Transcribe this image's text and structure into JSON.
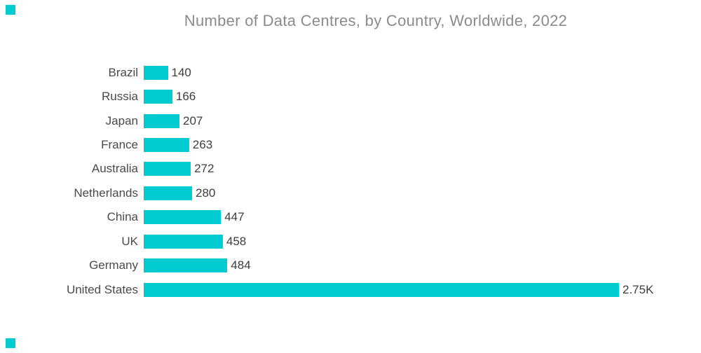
{
  "chart_data": {
    "type": "bar",
    "orientation": "horizontal",
    "title": "Number of Data Centres, by Country, Worldwide, 2022",
    "categories": [
      "Brazil",
      "Russia",
      "Japan",
      "France",
      "Australia",
      "Netherlands",
      "China",
      "UK",
      "Germany",
      "United States"
    ],
    "values": [
      140,
      166,
      207,
      263,
      272,
      280,
      447,
      458,
      484,
      2750
    ],
    "value_labels": [
      "140",
      "166",
      "207",
      "263",
      "272",
      "280",
      "447",
      "458",
      "484",
      "2.75K"
    ],
    "xlabel": "",
    "ylabel": "",
    "xlim": [
      0,
      2850
    ],
    "grid": false,
    "legend": false
  },
  "colors": {
    "accent": "#00CBD1",
    "title": "#8B8B8B",
    "category_label": "#4A4A4A",
    "value_label": "#3D3D3D",
    "background": "#FFFFFF"
  }
}
